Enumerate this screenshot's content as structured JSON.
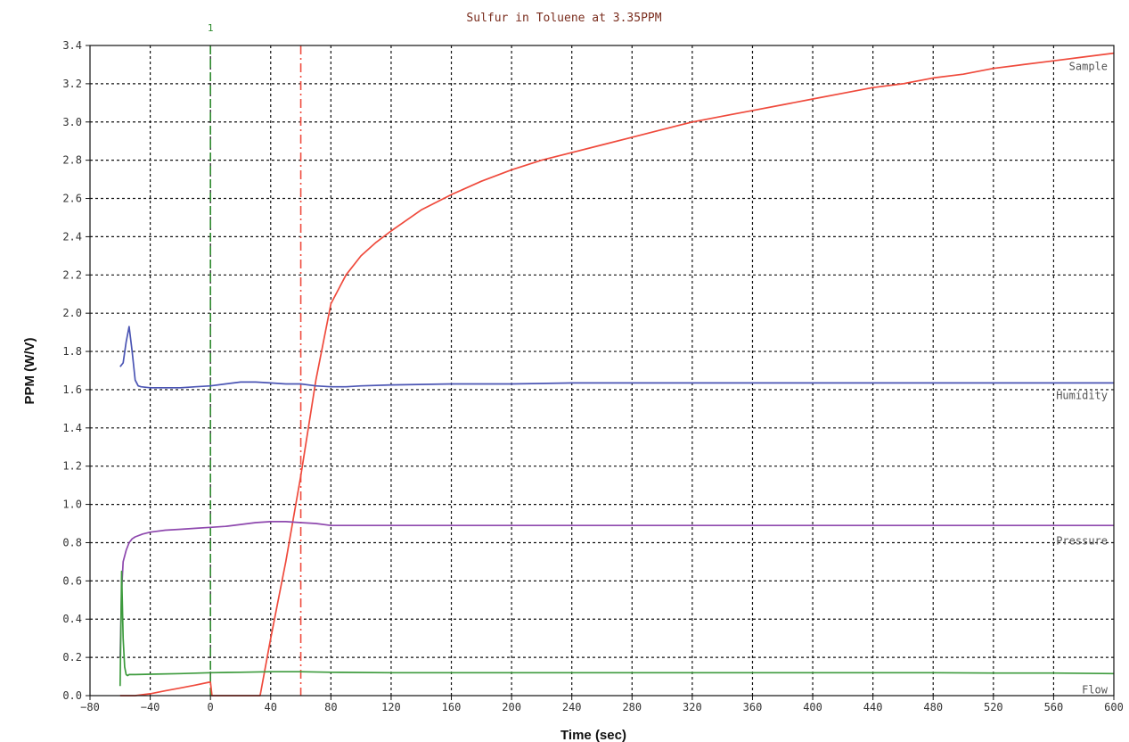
{
  "chart_data": {
    "type": "line",
    "title": "Sulfur in Toluene at 3.35PPM",
    "xlabel": "Time (sec)",
    "ylabel": "PPM (W/V)",
    "xlim": [
      -80,
      600
    ],
    "ylim": [
      0.0,
      3.4
    ],
    "x_ticks": [
      -80,
      -40,
      0,
      40,
      80,
      120,
      160,
      200,
      240,
      280,
      320,
      360,
      400,
      440,
      480,
      520,
      560,
      600
    ],
    "x_tick_labels": [
      "−80",
      "−40",
      "0",
      "40",
      "80",
      "120",
      "160",
      "200",
      "240",
      "280",
      "320",
      "360",
      "400",
      "440",
      "480",
      "520",
      "560",
      "600"
    ],
    "y_ticks": [
      0.0,
      0.2,
      0.4,
      0.6,
      0.8,
      1.0,
      1.2,
      1.4,
      1.6,
      1.8,
      2.0,
      2.2,
      2.4,
      2.6,
      2.8,
      3.0,
      3.2,
      3.4
    ],
    "y_tick_labels": [
      "0.0",
      "0.2",
      "0.4",
      "0.6",
      "0.8",
      "1.0",
      "1.2",
      "1.4",
      "1.6",
      "1.8",
      "2.0",
      "2.2",
      "2.4",
      "2.6",
      "2.8",
      "3.0",
      "3.2",
      "3.4"
    ],
    "grid": true,
    "markers": [
      {
        "x": 0,
        "label": "1",
        "color": "#2e8b2e",
        "style": "dashed"
      },
      {
        "x": 60,
        "label": "",
        "color": "#ef4a3c",
        "style": "dashdot"
      }
    ],
    "series": [
      {
        "name": "Sample",
        "color": "#ef4a3c",
        "x": [
          -60,
          -50,
          -40,
          -30,
          -20,
          -10,
          -1,
          0,
          1,
          20,
          33,
          40,
          50,
          60,
          70,
          80,
          90,
          100,
          110,
          120,
          140,
          160,
          180,
          200,
          220,
          240,
          260,
          280,
          300,
          320,
          340,
          360,
          380,
          400,
          420,
          440,
          460,
          480,
          500,
          520,
          540,
          560,
          580,
          600
        ],
        "y": [
          0.0,
          0.0,
          0.01,
          0.025,
          0.04,
          0.055,
          0.07,
          0.07,
          0.0,
          0.0,
          0.0,
          0.3,
          0.7,
          1.15,
          1.65,
          2.05,
          2.2,
          2.3,
          2.37,
          2.43,
          2.54,
          2.62,
          2.69,
          2.75,
          2.8,
          2.84,
          2.88,
          2.92,
          2.96,
          3.0,
          3.03,
          3.06,
          3.09,
          3.12,
          3.15,
          3.18,
          3.2,
          3.23,
          3.25,
          3.28,
          3.3,
          3.32,
          3.34,
          3.36
        ]
      },
      {
        "name": "Humidity",
        "color": "#4b55b4",
        "x": [
          -60,
          -58,
          -56,
          -54,
          -52,
          -50,
          -48,
          -46,
          -40,
          -30,
          -20,
          -10,
          0,
          10,
          20,
          30,
          40,
          50,
          60,
          70,
          80,
          90,
          100,
          120,
          160,
          200,
          240,
          280,
          320,
          360,
          400,
          440,
          480,
          520,
          560,
          600
        ],
        "y": [
          1.72,
          1.74,
          1.85,
          1.93,
          1.8,
          1.65,
          1.62,
          1.615,
          1.61,
          1.61,
          1.61,
          1.615,
          1.62,
          1.63,
          1.64,
          1.64,
          1.635,
          1.63,
          1.63,
          1.62,
          1.615,
          1.615,
          1.62,
          1.625,
          1.63,
          1.63,
          1.635,
          1.635,
          1.635,
          1.635,
          1.635,
          1.635,
          1.635,
          1.635,
          1.635,
          1.635
        ]
      },
      {
        "name": "Pressure",
        "color": "#8e48ae",
        "x": [
          -60,
          -59,
          -58,
          -56,
          -54,
          -52,
          -50,
          -45,
          -40,
          -30,
          -20,
          -10,
          0,
          10,
          20,
          30,
          40,
          50,
          60,
          70,
          80,
          100,
          120,
          160,
          200,
          240,
          280,
          320,
          360,
          400,
          440,
          480,
          520,
          560,
          600
        ],
        "y": [
          0.2,
          0.55,
          0.7,
          0.76,
          0.8,
          0.82,
          0.83,
          0.845,
          0.855,
          0.865,
          0.87,
          0.875,
          0.88,
          0.885,
          0.895,
          0.905,
          0.91,
          0.91,
          0.905,
          0.9,
          0.89,
          0.89,
          0.89,
          0.89,
          0.89,
          0.89,
          0.89,
          0.89,
          0.89,
          0.89,
          0.89,
          0.89,
          0.89,
          0.89,
          0.89
        ]
      },
      {
        "name": "Flow",
        "color": "#3d9b3d",
        "x": [
          -60,
          -59,
          -58,
          -57,
          -56,
          -55,
          -54,
          -52,
          -50,
          -40,
          -20,
          0,
          20,
          40,
          60,
          80,
          120,
          160,
          200,
          240,
          280,
          320,
          360,
          400,
          440,
          480,
          520,
          560,
          600
        ],
        "y": [
          0.05,
          0.65,
          0.3,
          0.15,
          0.11,
          0.105,
          0.11,
          0.11,
          0.11,
          0.112,
          0.115,
          0.12,
          0.122,
          0.125,
          0.125,
          0.122,
          0.12,
          0.12,
          0.12,
          0.12,
          0.12,
          0.12,
          0.12,
          0.12,
          0.12,
          0.12,
          0.118,
          0.118,
          0.115
        ]
      }
    ]
  }
}
